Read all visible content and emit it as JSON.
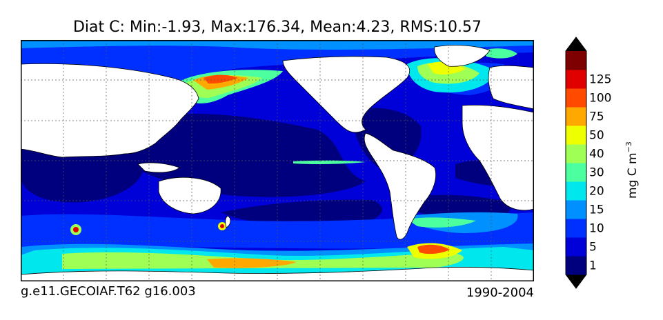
{
  "figure": {
    "title": "Diat C: Min:-1.93, Max:176.34, Mean:4.23, RMS:10.57",
    "caption_left": "g.e11.GECOIAF.T62 g16.003",
    "caption_right": "1990-2004"
  },
  "colorbar": {
    "units": "mg C m",
    "units_exponent": "−3",
    "levels": [
      {
        "label": "1",
        "color": "#00007f"
      },
      {
        "label": "5",
        "color": "#0000d8"
      },
      {
        "label": "10",
        "color": "#0030ff"
      },
      {
        "label": "15",
        "color": "#0090ff"
      },
      {
        "label": "20",
        "color": "#00e8ee"
      },
      {
        "label": "30",
        "color": "#4cff9f"
      },
      {
        "label": "40",
        "color": "#9fff55"
      },
      {
        "label": "50",
        "color": "#eeff00"
      },
      {
        "label": "75",
        "color": "#ffa800"
      },
      {
        "label": "100",
        "color": "#ff4a00"
      },
      {
        "label": "125",
        "color": "#e00000"
      },
      {
        "label": "",
        "color": "#7f0000"
      }
    ],
    "extend_low_color": "#000000",
    "extend_high_color": "#000000"
  },
  "map": {
    "land_color": "#ffffff",
    "ocean_base_color": "#0000d8",
    "gridlines": true
  }
}
